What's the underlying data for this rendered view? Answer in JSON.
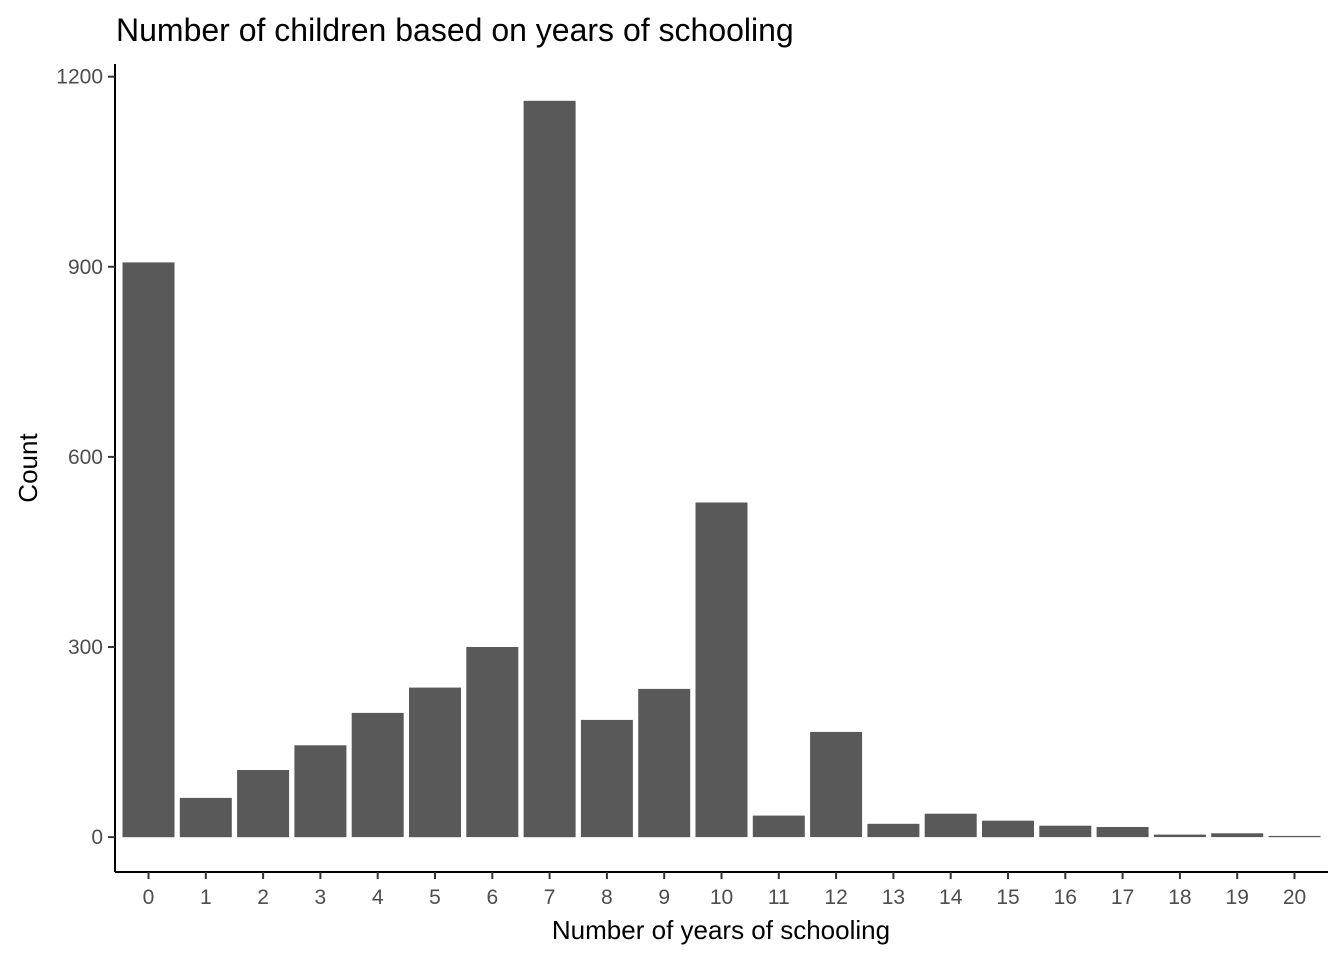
{
  "chart_data": {
    "type": "bar",
    "title": "Number of children based on years of schooling",
    "xlabel": "Number of years of schooling",
    "ylabel": "Count",
    "categories": [
      "0",
      "1",
      "2",
      "3",
      "4",
      "5",
      "6",
      "7",
      "8",
      "9",
      "10",
      "11",
      "12",
      "13",
      "14",
      "15",
      "16",
      "17",
      "18",
      "19",
      "20"
    ],
    "values": [
      907,
      62,
      106,
      145,
      196,
      236,
      300,
      1162,
      185,
      234,
      528,
      34,
      166,
      21,
      37,
      26,
      18,
      16,
      4,
      6,
      2
    ],
    "ylim": [
      -55,
      1220
    ],
    "yticks": [
      0,
      300,
      600,
      900,
      1200
    ],
    "grid": false,
    "legend": "none",
    "bar_color": "#595959"
  }
}
